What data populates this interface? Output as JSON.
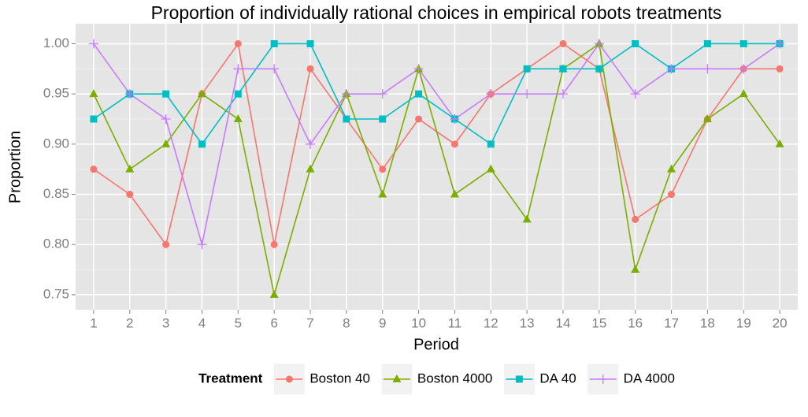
{
  "chart_data": {
    "type": "line",
    "title": "Proportion of individually rational choices in empirical robots treatments",
    "x_label": "Period",
    "y_label": "Proportion",
    "legend_title": "Treatment",
    "legend_position": "bottom",
    "x": [
      1,
      2,
      3,
      4,
      5,
      6,
      7,
      8,
      9,
      10,
      11,
      12,
      13,
      14,
      15,
      16,
      17,
      18,
      19,
      20
    ],
    "xlim": [
      0.5,
      20.5
    ],
    "xticks": [
      1,
      2,
      3,
      4,
      5,
      6,
      7,
      8,
      9,
      10,
      11,
      12,
      13,
      14,
      15,
      16,
      17,
      18,
      19,
      20
    ],
    "ylim": [
      0.735,
      1.02
    ],
    "yticks": [
      {
        "value": 0.75,
        "label": "0.75"
      },
      {
        "value": 0.8,
        "label": "0.80"
      },
      {
        "value": 0.85,
        "label": "0.85"
      },
      {
        "value": 0.9,
        "label": "0.90"
      },
      {
        "value": 0.95,
        "label": "0.95"
      },
      {
        "value": 1,
        "label": "1.00"
      }
    ],
    "grid": true,
    "series": [
      {
        "name": "Boston 40",
        "color": "#F8766D",
        "marker": "circle",
        "values": [
          0.875,
          0.85,
          0.8,
          0.95,
          1,
          0.8,
          0.975,
          0.925,
          0.875,
          0.925,
          0.9,
          0.95,
          0.975,
          1,
          0.975,
          0.825,
          0.85,
          0.925,
          0.975,
          0.975
        ]
      },
      {
        "name": "Boston 4000",
        "color": "#7CAE00",
        "marker": "triangle",
        "values": [
          0.95,
          0.875,
          0.9,
          0.95,
          0.925,
          0.75,
          0.875,
          0.95,
          0.85,
          0.975,
          0.85,
          0.875,
          0.825,
          0.975,
          1,
          0.775,
          0.875,
          0.925,
          0.95,
          0.9
        ]
      },
      {
        "name": "DA 40",
        "color": "#00BFC4",
        "marker": "square",
        "values": [
          0.925,
          0.95,
          0.95,
          0.9,
          0.95,
          1,
          1,
          0.925,
          0.925,
          0.95,
          0.925,
          0.9,
          0.975,
          0.975,
          0.975,
          1,
          0.975,
          1,
          1,
          1
        ]
      },
      {
        "name": "DA 4000",
        "color": "#C77CFF",
        "marker": "plus",
        "values": [
          1,
          0.95,
          0.925,
          0.8,
          0.975,
          0.975,
          0.9,
          0.95,
          0.95,
          0.975,
          0.925,
          0.95,
          0.95,
          0.95,
          1,
          0.95,
          0.975,
          0.975,
          0.975,
          1
        ]
      }
    ]
  }
}
